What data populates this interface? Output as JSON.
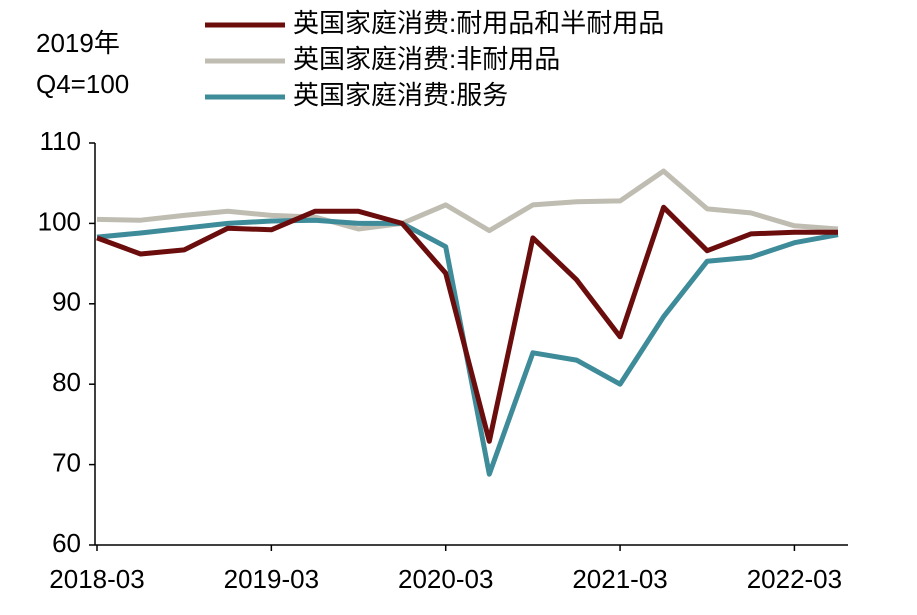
{
  "chart_data": {
    "type": "line",
    "ylabel": [
      "2019年",
      "Q4=100"
    ],
    "categories": [
      "2018-03",
      null,
      null,
      null,
      "2019-03",
      null,
      null,
      null,
      "2020-03",
      null,
      null,
      null,
      "2021-03",
      null,
      null,
      null,
      "2022-03",
      null
    ],
    "series": [
      {
        "name": "英国家庭消费:耐用品和半耐用品",
        "color": "#6b0d0d",
        "values": [
          98.2,
          96.2,
          96.7,
          99.4,
          99.2,
          101.5,
          101.5,
          100,
          93.8,
          72.9,
          98.2,
          93,
          85.9,
          102,
          96.6,
          98.7,
          98.9,
          98.9
        ]
      },
      {
        "name": "英国家庭消费:非耐用品",
        "color": "#bfbdb1",
        "values": [
          100.5,
          100.4,
          101,
          101.5,
          101,
          100.8,
          99.3,
          100,
          102.3,
          99.1,
          102.3,
          102.7,
          102.8,
          106.5,
          101.8,
          101.3,
          99.7,
          99.3
        ]
      },
      {
        "name": "英国家庭消费:服务",
        "color": "#3e8b99",
        "values": [
          98.3,
          98.8,
          99.4,
          100,
          100.3,
          100.4,
          100,
          100,
          97.1,
          68.8,
          83.9,
          83,
          80,
          88.4,
          95.3,
          95.8,
          97.6,
          98.6
        ]
      }
    ],
    "ylim": [
      60,
      110
    ],
    "yticks": [
      60,
      70,
      80,
      90,
      100,
      110
    ]
  }
}
